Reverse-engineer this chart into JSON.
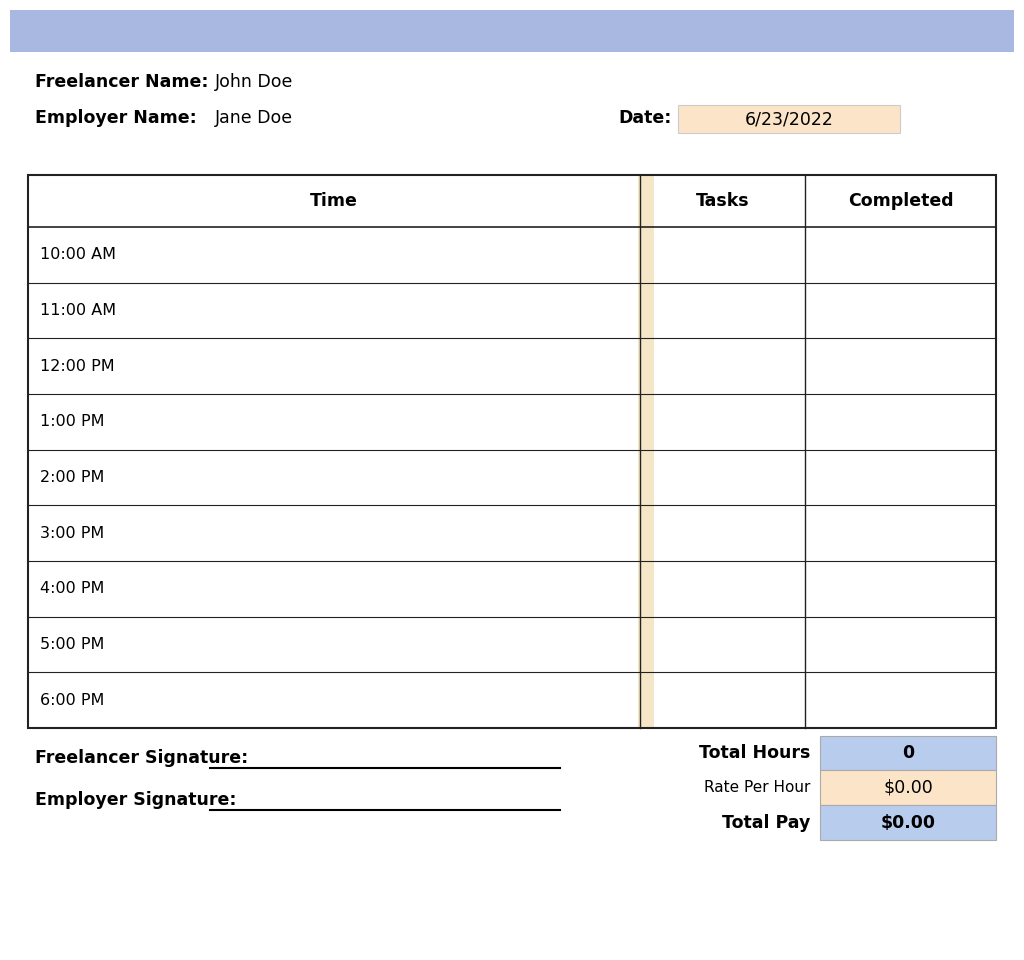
{
  "title_bar_color": "#a8b8e0",
  "background_color": "#ffffff",
  "freelancer_name_label": "Freelancer Name:",
  "freelancer_name_value": "John Doe",
  "employer_name_label": "Employer Name:",
  "employer_name_value": "Jane Doe",
  "date_label": "Date:",
  "date_value": "6/23/2022",
  "date_bg_color": "#fce4c8",
  "table_header": [
    "Time",
    "Tasks",
    "Completed"
  ],
  "time_slots": [
    "10:00 AM",
    "11:00 AM",
    "12:00 PM",
    "1:00 PM",
    "2:00 PM",
    "3:00 PM",
    "4:00 PM",
    "5:00 PM",
    "6:00 PM"
  ],
  "time_col_divider_color": "#f5e6c8",
  "table_border_color": "#222222",
  "freelancer_sig_label": "Freelancer Signature:",
  "employer_sig_label": "Employer Signature:",
  "total_hours_label": "Total Hours",
  "total_hours_value": "0",
  "total_hours_bg": "#b8ccee",
  "rate_per_hour_label": "Rate Per Hour",
  "rate_per_hour_value": "$0.00",
  "rate_per_hour_bg": "#fce4c8",
  "total_pay_label": "Total Pay",
  "total_pay_value": "$0.00",
  "total_pay_bg": "#b8ccee",
  "label_fontsize": 12.5,
  "value_fontsize": 12.5,
  "header_fontsize": 12.5,
  "time_fontsize": 11.5,
  "sig_fontsize": 12.5,
  "small_fontsize": 11
}
